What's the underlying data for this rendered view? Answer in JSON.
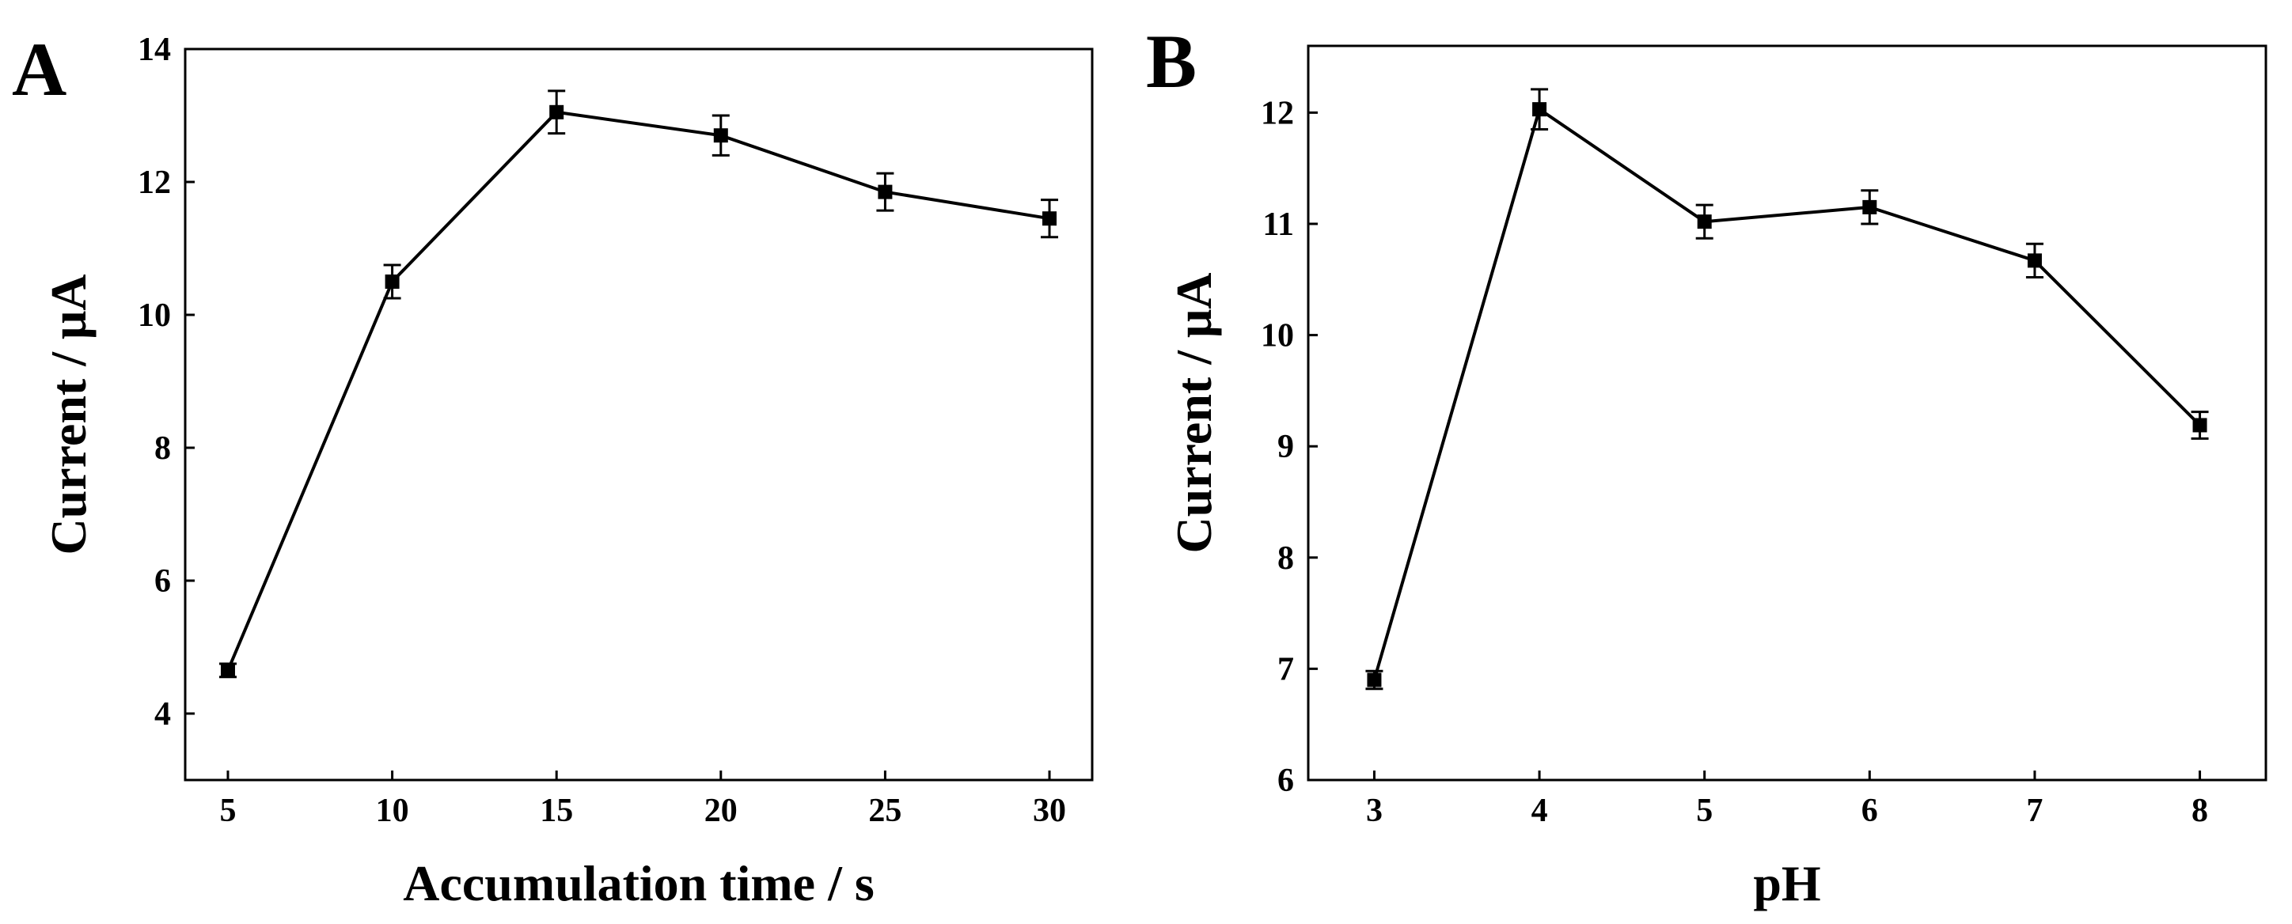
{
  "chart_data": [
    {
      "panel_label": "A",
      "type": "line",
      "title": "",
      "xlabel": "Accumulation time / s",
      "ylabel": "Current / μA",
      "x": [
        5,
        10,
        15,
        20,
        25,
        30
      ],
      "series": [
        {
          "name": "Current",
          "values": [
            4.65,
            10.5,
            13.05,
            12.7,
            11.85,
            11.45
          ],
          "errors": [
            0.1,
            0.25,
            0.32,
            0.3,
            0.28,
            0.28
          ]
        }
      ],
      "xlim": [
        3.7,
        31.3
      ],
      "ylim": [
        3.0,
        14.0
      ],
      "xticks": [
        5,
        10,
        15,
        20,
        25,
        30
      ],
      "yticks": [
        4,
        6,
        8,
        10,
        12,
        14
      ],
      "grid": false,
      "marker": "square"
    },
    {
      "panel_label": "B",
      "type": "line",
      "title": "",
      "xlabel": "pH",
      "ylabel": "Current / μA",
      "x": [
        3,
        4,
        5,
        6,
        7,
        8
      ],
      "series": [
        {
          "name": "Current",
          "values": [
            6.9,
            12.03,
            11.02,
            11.15,
            10.67,
            9.19
          ],
          "errors": [
            0.08,
            0.18,
            0.15,
            0.15,
            0.15,
            0.12
          ]
        }
      ],
      "xlim": [
        2.6,
        8.4
      ],
      "ylim": [
        6.0,
        12.6
      ],
      "xticks": [
        3,
        4,
        5,
        6,
        7,
        8
      ],
      "yticks": [
        6,
        7,
        8,
        9,
        10,
        11,
        12
      ],
      "grid": false,
      "marker": "square"
    }
  ]
}
